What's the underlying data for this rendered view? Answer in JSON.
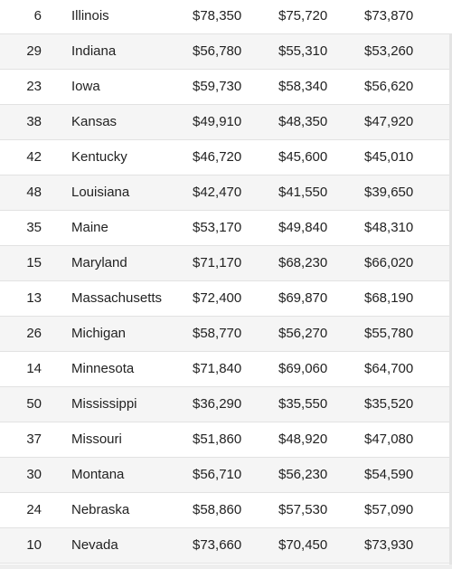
{
  "table": {
    "rows": [
      {
        "rank": "6",
        "state": "Illinois",
        "v1": "$78,350",
        "v2": "$75,720",
        "v3": "$73,870"
      },
      {
        "rank": "29",
        "state": "Indiana",
        "v1": "$56,780",
        "v2": "$55,310",
        "v3": "$53,260"
      },
      {
        "rank": "23",
        "state": "Iowa",
        "v1": "$59,730",
        "v2": "$58,340",
        "v3": "$56,620"
      },
      {
        "rank": "38",
        "state": "Kansas",
        "v1": "$49,910",
        "v2": "$48,350",
        "v3": "$47,920"
      },
      {
        "rank": "42",
        "state": "Kentucky",
        "v1": "$46,720",
        "v2": "$45,600",
        "v3": "$45,010"
      },
      {
        "rank": "48",
        "state": "Louisiana",
        "v1": "$42,470",
        "v2": "$41,550",
        "v3": "$39,650"
      },
      {
        "rank": "35",
        "state": "Maine",
        "v1": "$53,170",
        "v2": "$49,840",
        "v3": "$48,310"
      },
      {
        "rank": "15",
        "state": "Maryland",
        "v1": "$71,170",
        "v2": "$68,230",
        "v3": "$66,020"
      },
      {
        "rank": "13",
        "state": "Massachusetts",
        "v1": "$72,400",
        "v2": "$69,870",
        "v3": "$68,190"
      },
      {
        "rank": "26",
        "state": "Michigan",
        "v1": "$58,770",
        "v2": "$56,270",
        "v3": "$55,780"
      },
      {
        "rank": "14",
        "state": "Minnesota",
        "v1": "$71,840",
        "v2": "$69,060",
        "v3": "$64,700"
      },
      {
        "rank": "50",
        "state": "Mississippi",
        "v1": "$36,290",
        "v2": "$35,550",
        "v3": "$35,520"
      },
      {
        "rank": "37",
        "state": "Missouri",
        "v1": "$51,860",
        "v2": "$48,920",
        "v3": "$47,080"
      },
      {
        "rank": "30",
        "state": "Montana",
        "v1": "$56,710",
        "v2": "$56,230",
        "v3": "$54,590"
      },
      {
        "rank": "24",
        "state": "Nebraska",
        "v1": "$58,860",
        "v2": "$57,530",
        "v3": "$57,090"
      },
      {
        "rank": "10",
        "state": "Nevada",
        "v1": "$73,660",
        "v2": "$70,450",
        "v3": "$73,930"
      }
    ]
  },
  "colors": {
    "row_alt": "#f5f5f5",
    "row": "#ffffff",
    "divider": "#e2e2e2",
    "text": "#222222"
  }
}
